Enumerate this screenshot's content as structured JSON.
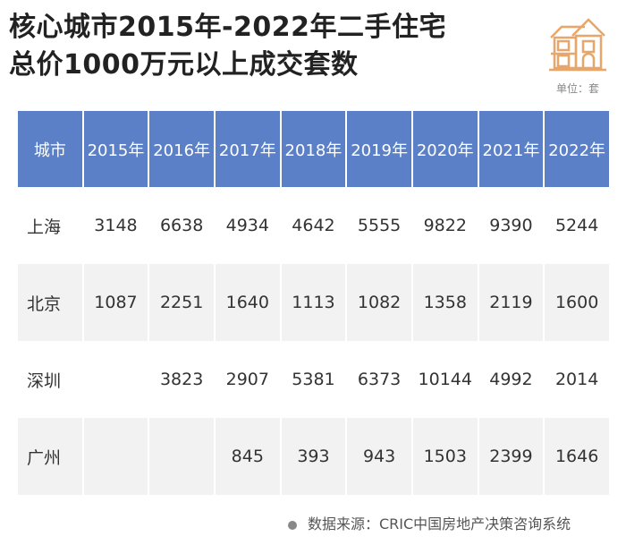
{
  "title_line1": "核心城市2015年-2022年二手住宅",
  "title_line2": "总价1000万元以上成交套数",
  "unit": "单位：套",
  "icon": "house-icon",
  "colors": {
    "header": "#5b80c7",
    "icon": "#e8a66a",
    "alt_row": "#f2f2f2"
  },
  "table": {
    "headers": [
      "城市",
      "2015年",
      "2016年",
      "2017年",
      "2018年",
      "2019年",
      "2020年",
      "2021年",
      "2022年"
    ],
    "rows": [
      [
        "上海",
        "3148",
        "6638",
        "4934",
        "4642",
        "5555",
        "9822",
        "9390",
        "5244"
      ],
      [
        "北京",
        "1087",
        "2251",
        "1640",
        "1113",
        "1082",
        "1358",
        "2119",
        "1600"
      ],
      [
        "深圳",
        "",
        "3823",
        "2907",
        "5381",
        "6373",
        "10144",
        "4992",
        "2014"
      ],
      [
        "广州",
        "",
        "",
        "845",
        "393",
        "943",
        "1503",
        "2399",
        "1646"
      ]
    ]
  },
  "source": "数据来源：CRIC中国房地产决策咨询系统"
}
